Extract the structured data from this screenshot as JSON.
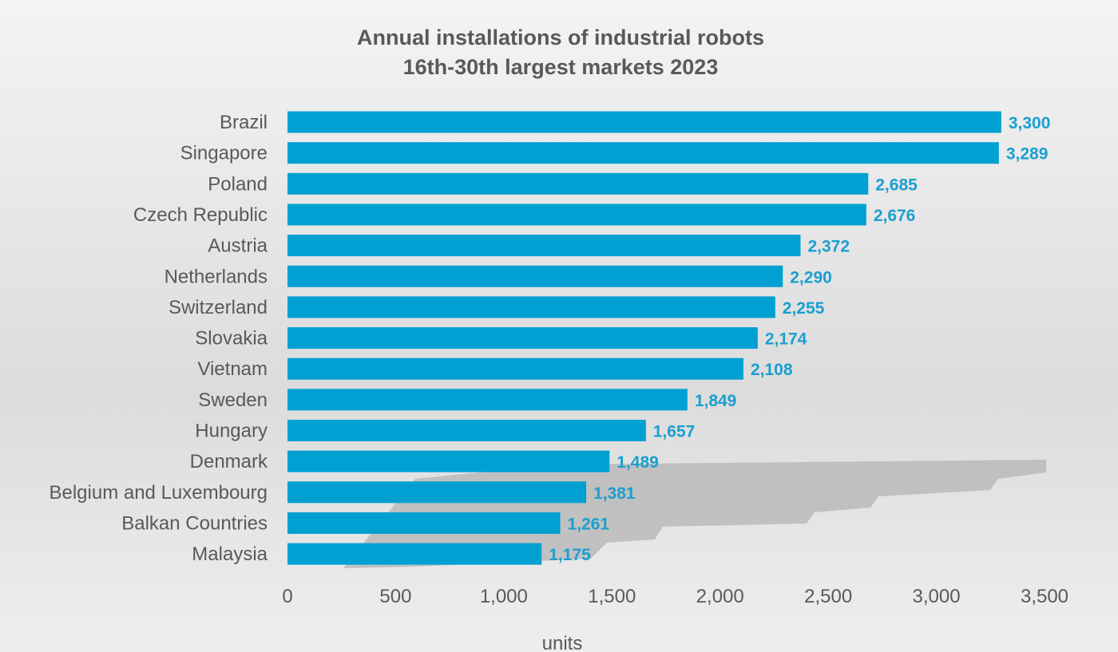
{
  "chart_data": {
    "type": "bar",
    "orientation": "horizontal",
    "title": "Annual installations of industrial robots",
    "subtitle": "16th-30th largest markets 2023",
    "xlabel": "units",
    "ylabel": "",
    "xlim": [
      0,
      3500
    ],
    "xticks": [
      0,
      500,
      1000,
      1500,
      2000,
      2500,
      3000,
      3500
    ],
    "xtick_labels": [
      "0",
      "500",
      "1,000",
      "1,500",
      "2,000",
      "2,500",
      "3,000",
      "3,500"
    ],
    "grid": false,
    "categories": [
      "Brazil",
      "Singapore",
      "Poland",
      "Czech Republic",
      "Austria",
      "Netherlands",
      "Switzerland",
      "Slovakia",
      "Vietnam",
      "Sweden",
      "Hungary",
      "Denmark",
      "Belgium and Luxembourg",
      "Balkan Countries",
      "Malaysia"
    ],
    "values": [
      3300,
      3289,
      2685,
      2676,
      2372,
      2290,
      2255,
      2174,
      2108,
      1849,
      1657,
      1489,
      1381,
      1261,
      1175
    ],
    "value_labels": [
      "3,300",
      "3,289",
      "2,685",
      "2,676",
      "2,372",
      "2,290",
      "2,255",
      "2,174",
      "2,108",
      "1,849",
      "1,657",
      "1,489",
      "1,381",
      "1,261",
      "1,175"
    ],
    "colors": {
      "bar": "#00a0d2",
      "value_label": "#1a9fd0",
      "text": "#595959"
    }
  }
}
